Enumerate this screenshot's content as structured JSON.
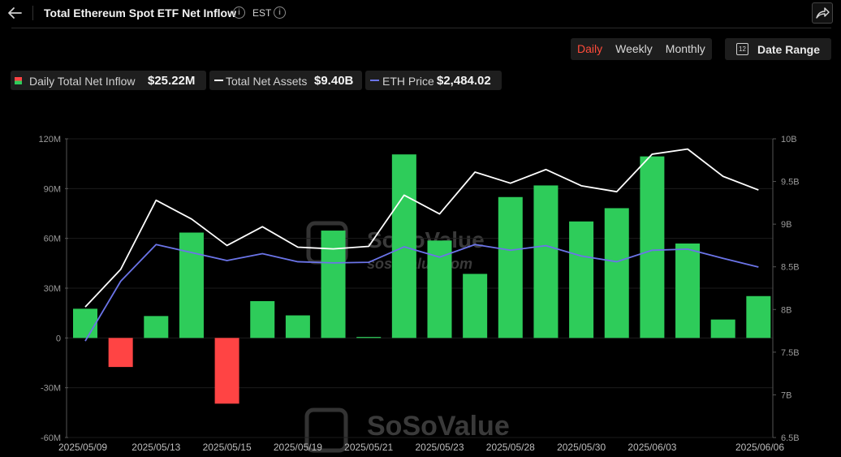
{
  "header": {
    "title": "Total Ethereum Spot ETF Net Inflow",
    "timezone": "EST"
  },
  "controls": {
    "periods": [
      "Daily",
      "Weekly",
      "Monthly"
    ],
    "active_period": "Daily",
    "date_range_label": "Date Range",
    "calendar_icon_text": "12"
  },
  "legend": {
    "inflow": {
      "label": "Daily Total Net Inflow",
      "value": "$25.22M"
    },
    "assets": {
      "label": "Total Net Assets",
      "value": "$9.40B"
    },
    "price": {
      "label": "ETH Price",
      "value": "$2,484.02"
    }
  },
  "watermark": {
    "brand": "SoSoValue",
    "url": "sosovalue.com"
  },
  "colors": {
    "positive": "#2ecc5a",
    "negative": "#ff4444",
    "assets_line": "#ffffff",
    "price_line": "#6b74e8",
    "accent": "#ff4b3a"
  },
  "chart_data": {
    "type": "bar",
    "title": "Total Ethereum Spot ETF Net Inflow",
    "x": [
      "2025/05/09",
      "2025/05/12",
      "2025/05/13",
      "2025/05/14",
      "2025/05/15",
      "2025/05/16",
      "2025/05/19",
      "2025/05/20",
      "2025/05/21",
      "2025/05/22",
      "2025/05/23",
      "2025/05/27",
      "2025/05/28",
      "2025/05/29",
      "2025/05/30",
      "2025/06/02",
      "2025/06/03",
      "2025/06/04",
      "2025/06/05",
      "2025/06/06"
    ],
    "x_tick_labels": [
      "2025/05/09",
      "2025/05/13",
      "2025/05/15",
      "2025/05/19",
      "2025/05/21",
      "2025/05/23",
      "2025/05/28",
      "2025/05/30",
      "2025/06/03",
      "2025/06/06"
    ],
    "series": [
      {
        "name": "Daily Total Net Inflow",
        "type": "bar",
        "axis": "left",
        "values": [
          17.6,
          -17.5,
          13.2,
          63.5,
          -39.6,
          22.2,
          13.6,
          64.7,
          0.6,
          110.6,
          58.7,
          38.6,
          84.9,
          91.9,
          70.2,
          78.2,
          109.4,
          56.9,
          11.1,
          25.22
        ]
      },
      {
        "name": "Total Net Assets",
        "type": "line",
        "axis": "right",
        "unit": "B",
        "values": [
          8.03,
          8.47,
          9.28,
          9.06,
          8.75,
          8.97,
          8.73,
          8.71,
          8.74,
          9.34,
          9.12,
          9.61,
          9.48,
          9.64,
          9.45,
          9.38,
          9.82,
          9.88,
          9.56,
          9.4
        ]
      },
      {
        "name": "ETH Price",
        "type": "line",
        "values": [
          1840,
          2360,
          2680,
          2610,
          2540,
          2600,
          2530,
          2520,
          2525,
          2660,
          2570,
          2680,
          2630,
          2670,
          2580,
          2530,
          2630,
          2640,
          2560,
          2484.02
        ]
      }
    ],
    "y_left": {
      "ticks": [
        "120M",
        "90M",
        "60M",
        "30M",
        "0",
        "-30M",
        "-60M"
      ],
      "range": [
        -60,
        120
      ]
    },
    "y_right": {
      "ticks": [
        "10B",
        "9.5B",
        "9B",
        "8.5B",
        "8B",
        "7.5B",
        "7B",
        "6.5B"
      ],
      "range": [
        6.5,
        10
      ]
    },
    "price_range": [
      1000,
      3600
    ]
  }
}
